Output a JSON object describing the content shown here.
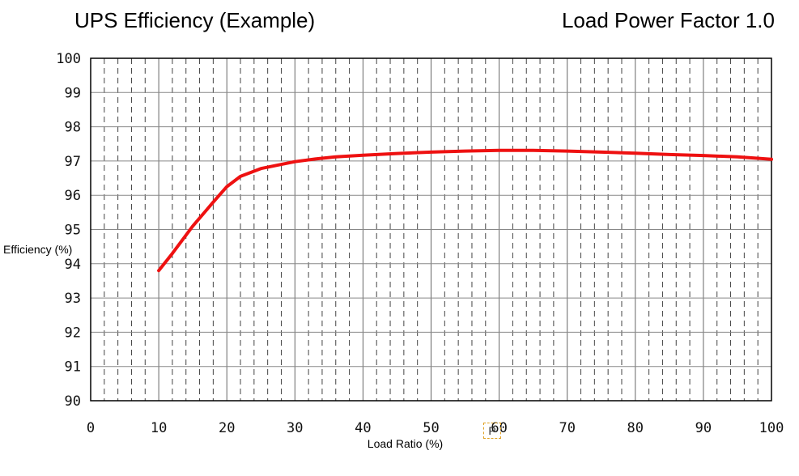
{
  "titles": {
    "left": "UPS Efficiency (Example)",
    "right": "Load Power Factor 1.0"
  },
  "marker_text": "P",
  "chart_data": {
    "type": "line",
    "title": "UPS Efficiency (Example)",
    "subtitle": "Load Power Factor 1.0",
    "xlabel": "Load Ratio (%)",
    "ylabel": "Efficiency (%)",
    "xlim": [
      0,
      100
    ],
    "ylim": [
      90,
      100
    ],
    "x_ticks": [
      0,
      10,
      20,
      30,
      40,
      50,
      60,
      70,
      80,
      90,
      100
    ],
    "y_ticks": [
      90,
      91,
      92,
      93,
      94,
      95,
      96,
      97,
      98,
      99,
      100
    ],
    "x_tick_labels": [
      "0",
      "10",
      "20",
      "30",
      "40",
      "50",
      "60",
      "70",
      "80",
      "90",
      "100"
    ],
    "y_tick_labels": [
      "90",
      "91",
      "92",
      "93",
      "94",
      "95",
      "96",
      "97",
      "98",
      "99",
      "100"
    ],
    "grid": true,
    "line_color": "#ee1111",
    "series": [
      {
        "x": [
          10,
          12,
          15,
          18,
          20,
          22,
          25,
          28,
          30,
          33,
          36,
          40,
          45,
          50,
          55,
          60,
          65,
          70,
          75,
          80,
          85,
          90,
          95,
          100
        ],
        "y": [
          93.8,
          94.3,
          95.1,
          95.8,
          96.25,
          96.55,
          96.78,
          96.9,
          96.98,
          97.06,
          97.12,
          97.17,
          97.22,
          97.26,
          97.29,
          97.31,
          97.31,
          97.29,
          97.26,
          97.23,
          97.19,
          97.16,
          97.12,
          97.05
        ]
      }
    ]
  }
}
